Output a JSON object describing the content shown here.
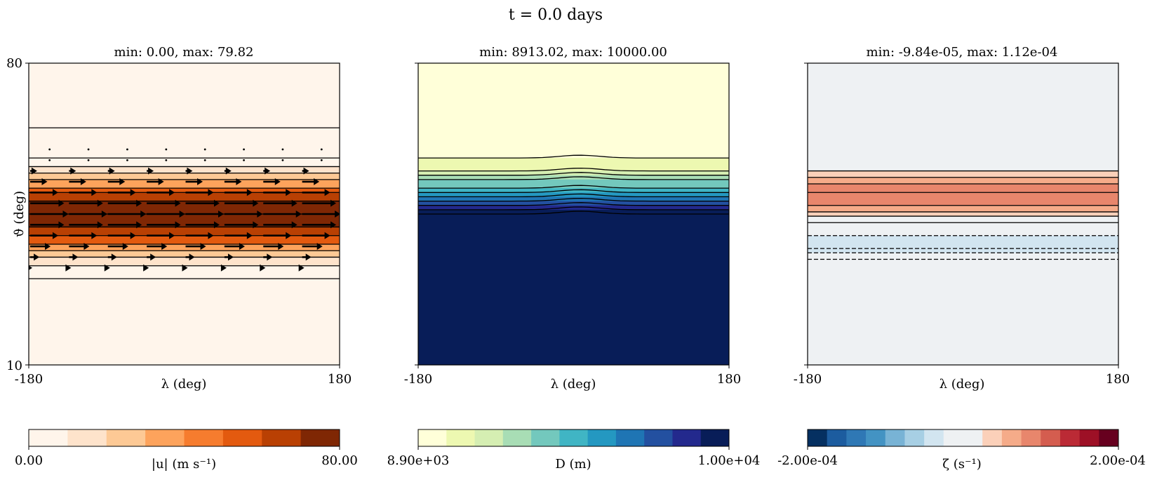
{
  "figure": {
    "title": "t = 0.0 days"
  },
  "panels": [
    {
      "title": "min: 0.00, max: 79.82",
      "xlabel": "λ (deg)",
      "ylabel": "ϑ (deg)",
      "x_ticks": [
        "-180",
        "180"
      ],
      "y_ticks": [
        "80",
        "10"
      ],
      "colorbar": {
        "label": "|u| (m s⁻¹)",
        "min_label": "0.00",
        "max_label": "80.00",
        "colors": [
          "#fff5eb",
          "#fee3cb",
          "#fdc995",
          "#fda35c",
          "#f67c2e",
          "#e35a0f",
          "#b94003",
          "#7f2704"
        ]
      }
    },
    {
      "title": "min: 8913.02, max: 10000.00",
      "xlabel": "λ (deg)",
      "x_ticks": [
        "-180",
        "180"
      ],
      "colorbar": {
        "label": "D (m)",
        "min_label": "8.90e+03",
        "max_label": "1.00e+04",
        "colors": [
          "#ffffd9",
          "#edf8b1",
          "#d5eeb2",
          "#a8ddb5",
          "#73c8bd",
          "#40b5c4",
          "#2498c1",
          "#1f75b4",
          "#2350a0",
          "#23298d",
          "#081d58"
        ]
      }
    },
    {
      "title": "min: -9.84e-05, max: 1.12e-04",
      "xlabel": "λ (deg)",
      "x_ticks": [
        "-180",
        "180"
      ],
      "colorbar": {
        "label": "ζ (s⁻¹)",
        "min_label": "-2.00e-04",
        "max_label": "2.00e-04",
        "colors": [
          "#053061",
          "#1c5c9f",
          "#2f78b5",
          "#4393c3",
          "#78b3d5",
          "#a7cfe4",
          "#d2e5f0",
          "#eef1f3",
          "#eef1f3",
          "#fbd0b9",
          "#f5ab89",
          "#e8866c",
          "#d45d4f",
          "#bb2a35",
          "#9d1026",
          "#67001f"
        ]
      }
    }
  ],
  "chart_data": [
    {
      "type": "heatmap",
      "title": "min: 0.00, max: 79.82",
      "variable": "|u| (m s⁻¹)",
      "xlabel": "λ (deg)",
      "ylabel": "ϑ (deg)",
      "xlim": [
        -180,
        180
      ],
      "ylim": [
        10,
        80
      ],
      "clim": [
        0,
        80
      ],
      "levels": 8,
      "min": 0.0,
      "max": 79.82,
      "profile_by_latitude": {
        "latitude": [
          80,
          65,
          58,
          56,
          54.5,
          53,
          51,
          50,
          48,
          45,
          42,
          40,
          38,
          36.5,
          35,
          33,
          30,
          10
        ],
        "value": [
          0,
          0,
          0,
          5,
          18,
          30,
          45,
          55,
          65,
          75,
          65,
          55,
          45,
          30,
          18,
          5,
          0,
          0
        ]
      },
      "overlay": "wind vectors (eastward) with contour lines",
      "legend": "none"
    },
    {
      "type": "heatmap",
      "title": "min: 8913.02, max: 10000.00",
      "variable": "D (m)",
      "xlabel": "λ (deg)",
      "xlim": [
        -180,
        180
      ],
      "ylim": [
        10,
        80
      ],
      "clim": [
        8900,
        10000
      ],
      "levels": 11,
      "min": 8913.02,
      "max": 10000.0,
      "profile_by_latitude": {
        "latitude": [
          80,
          58,
          55,
          54,
          53,
          51,
          50,
          49,
          48,
          47,
          46,
          45,
          10
        ],
        "value": [
          8950,
          8950,
          9050,
          9150,
          9250,
          9350,
          9450,
          9550,
          9650,
          9750,
          9850,
          9950,
          10000
        ]
      },
      "feature": "small bump in contours centred near λ = 0",
      "legend": "none"
    },
    {
      "type": "heatmap",
      "title": "min: -9.84e-05, max: 1.12e-04",
      "variable": "ζ (s⁻¹)",
      "xlabel": "λ (deg)",
      "xlim": [
        -180,
        180
      ],
      "ylim": [
        10,
        80
      ],
      "clim": [
        -0.0002,
        0.0002
      ],
      "levels": 16,
      "min": -9.84e-05,
      "max": 0.000112,
      "profile_by_latitude": {
        "latitude": [
          80,
          55,
          53.5,
          52,
          50,
          47,
          45.5,
          44.5,
          43,
          40,
          37,
          36,
          34.5,
          10
        ],
        "value": [
          0,
          2.5e-05,
          5e-05,
          7.5e-05,
          0.0001,
          7.5e-05,
          5e-05,
          2.5e-05,
          0,
          -2.5e-05,
          -5e-05,
          -2.5e-05,
          -1e-05,
          0
        ]
      },
      "contours": "solid positive, dashed negative",
      "legend": "none"
    }
  ]
}
